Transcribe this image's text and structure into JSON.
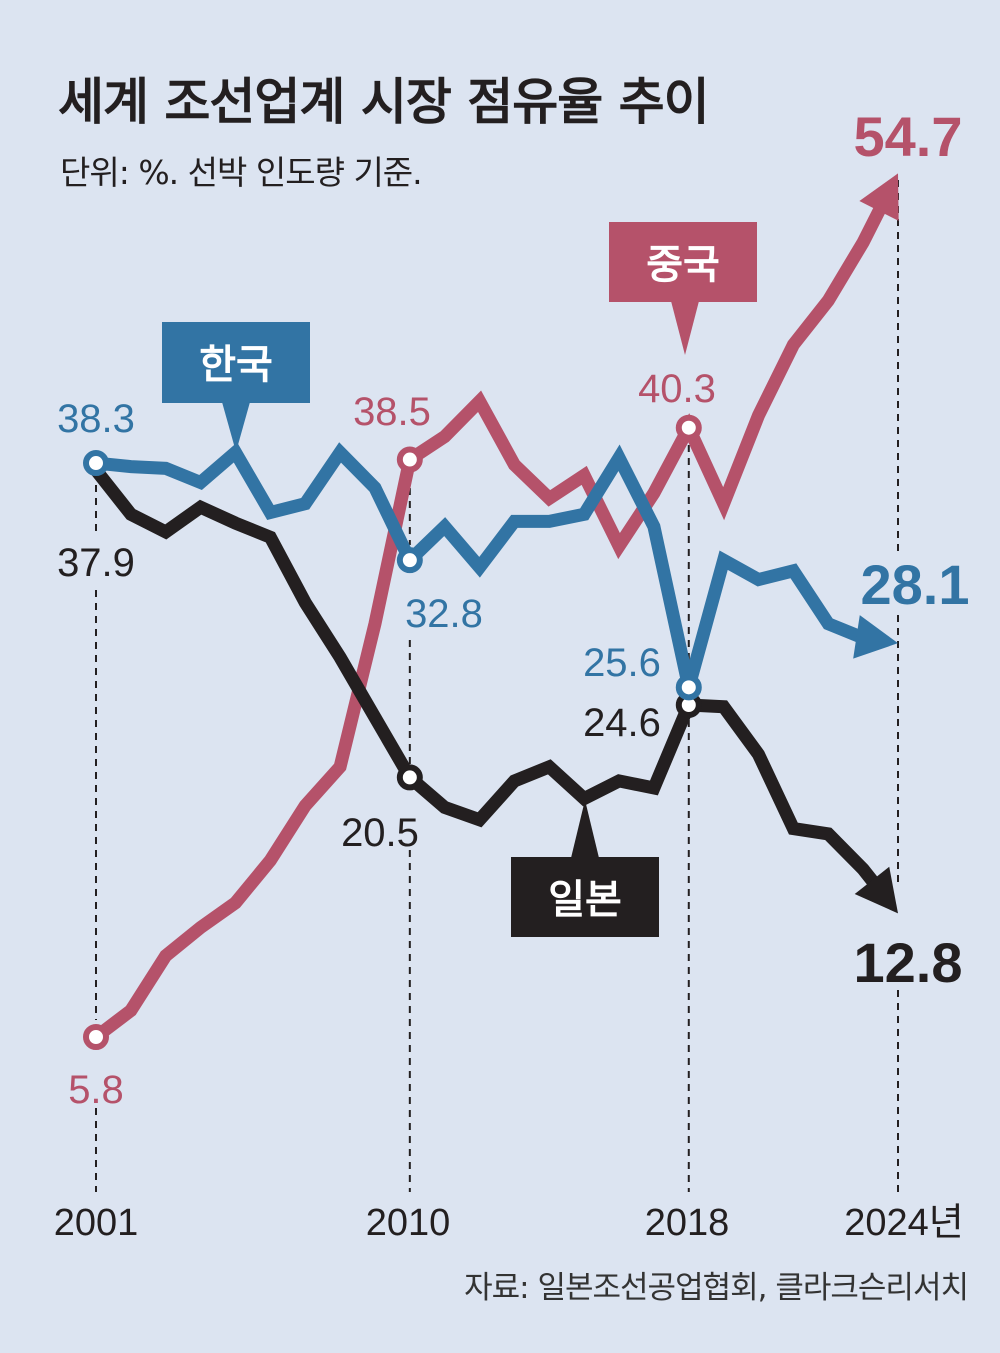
{
  "title": "세계 조선업계 시장 점유율 추이",
  "subtitle": "단위: %. 선박 인도량 기준.",
  "source": "자료: 일본조선공업협회, 클라크슨리서치",
  "colors": {
    "china": "#b5526a",
    "korea": "#3274a4",
    "japan": "#231f20",
    "background": "#dce4f1"
  },
  "chart_data": {
    "type": "line",
    "title": "세계 조선업계 시장 점유율 추이",
    "ylabel": "",
    "xlabel": "",
    "x": [
      2001,
      2002,
      2003,
      2004,
      2005,
      2006,
      2007,
      2008,
      2009,
      2010,
      2011,
      2012,
      2013,
      2014,
      2015,
      2016,
      2017,
      2018,
      2019,
      2020,
      2021,
      2022,
      2023,
      2024
    ],
    "xlim": [
      2001,
      2024
    ],
    "ylim": [
      5.8,
      54.7
    ],
    "grid": false,
    "x_tick_labels": [
      "2001",
      "2010",
      "2018",
      "2024년"
    ],
    "x_ticks": [
      2001,
      2010,
      2018,
      2024
    ],
    "series": [
      {
        "name": "중국",
        "key": "china",
        "values": [
          5.8,
          7.3,
          10.4,
          12.0,
          13.4,
          15.8,
          18.9,
          21.1,
          29.2,
          38.5,
          39.8,
          41.8,
          38.2,
          36.3,
          37.6,
          33.6,
          36.6,
          40.3,
          36.0,
          41.0,
          45.0,
          47.5,
          50.8,
          54.7
        ]
      },
      {
        "name": "한국",
        "key": "korea",
        "values": [
          38.3,
          38.1,
          38.0,
          37.2,
          38.9,
          35.5,
          36.0,
          38.9,
          36.9,
          32.8,
          34.7,
          32.4,
          35.0,
          35.0,
          35.4,
          38.6,
          34.7,
          25.6,
          32.8,
          31.7,
          32.2,
          29.2,
          28.4,
          28.1
        ]
      },
      {
        "name": "일본",
        "key": "japan",
        "values": [
          37.9,
          35.4,
          34.4,
          35.8,
          34.9,
          34.1,
          30.4,
          27.3,
          23.9,
          20.5,
          18.8,
          18.1,
          20.3,
          21.1,
          19.3,
          20.3,
          19.9,
          24.6,
          24.5,
          21.8,
          17.6,
          17.3,
          15.3,
          12.8
        ]
      }
    ],
    "data_labels": {
      "china": [
        {
          "x": 2001,
          "text": "5.8"
        },
        {
          "x": 2010,
          "text": "38.5"
        },
        {
          "x": 2018,
          "text": "40.3"
        },
        {
          "x": 2024,
          "text": "54.7"
        }
      ],
      "korea": [
        {
          "x": 2001,
          "text": "38.3"
        },
        {
          "x": 2010,
          "text": "32.8"
        },
        {
          "x": 2018,
          "text": "25.6"
        },
        {
          "x": 2024,
          "text": "28.1"
        }
      ],
      "japan": [
        {
          "x": 2001,
          "text": "37.9"
        },
        {
          "x": 2010,
          "text": "20.5"
        },
        {
          "x": 2018,
          "text": "24.6"
        },
        {
          "x": 2024,
          "text": "12.8"
        }
      ]
    },
    "legend": "callouts"
  }
}
